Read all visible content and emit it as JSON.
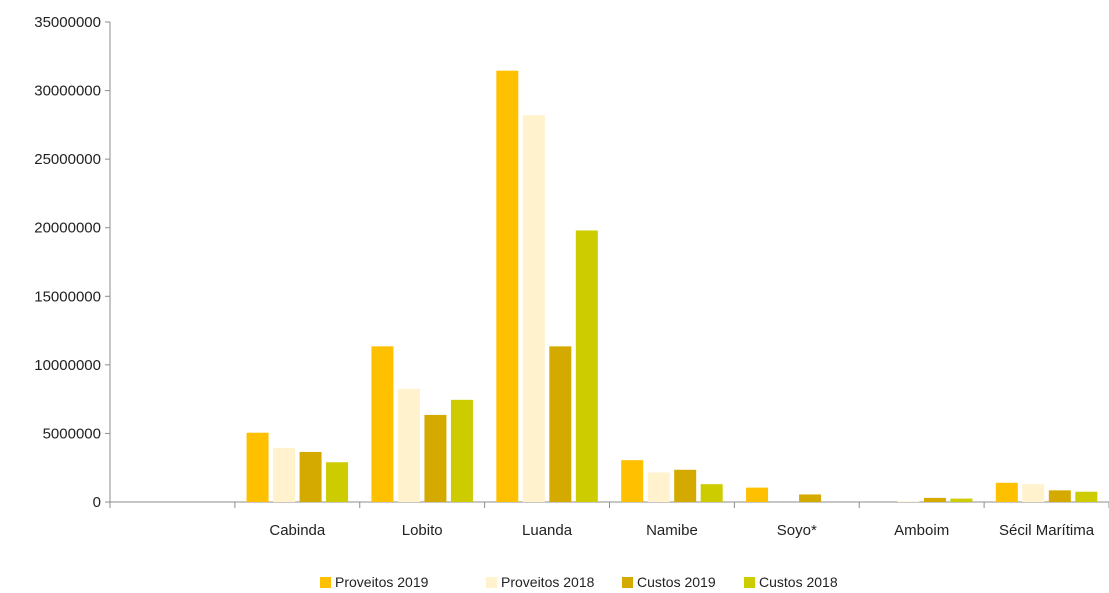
{
  "chart_data": {
    "type": "bar",
    "categories": [
      "",
      "Cabinda",
      "Lobito",
      "Luanda",
      "Namibe",
      "Soyo*",
      "Amboim",
      "Sécil Marítima"
    ],
    "series": [
      {
        "name": "Proveitos 2019",
        "color": "#ffc000",
        "values": [
          0,
          5050000,
          11350000,
          31450000,
          3050000,
          1050000,
          0,
          1400000
        ]
      },
      {
        "name": "Proveitos 2018",
        "color": "#fff2cc",
        "values": [
          0,
          3950000,
          8250000,
          28200000,
          2150000,
          0,
          50000,
          1300000
        ]
      },
      {
        "name": "Custos 2019",
        "color": "#d4aa00",
        "values": [
          0,
          3650000,
          6350000,
          11350000,
          2350000,
          550000,
          300000,
          850000
        ]
      },
      {
        "name": "Custos 2018",
        "color": "#cccc00",
        "values": [
          0,
          2900000,
          7450000,
          19800000,
          1300000,
          0,
          250000,
          750000
        ]
      }
    ],
    "ylim": [
      0,
      35000000
    ],
    "yticks": [
      "0",
      "5000000",
      "10000000",
      "15000000",
      "20000000",
      "25000000",
      "30000000",
      "35000000"
    ],
    "legend": "bottom",
    "grid": false
  }
}
